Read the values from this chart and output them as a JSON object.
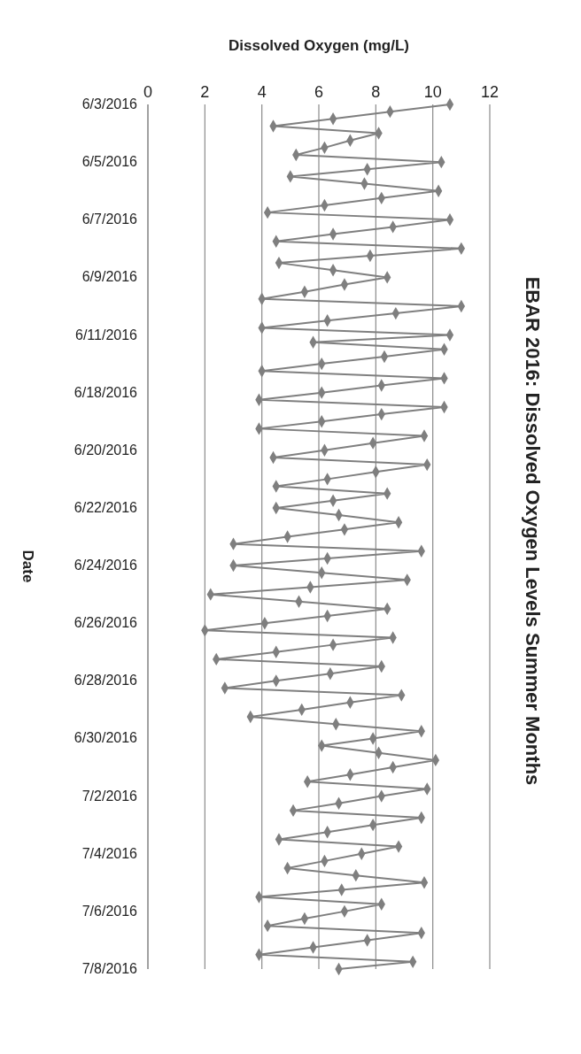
{
  "chart_data": {
    "type": "line",
    "title": "EBAR 2016: Dissolved Oxygen Levels Summer Months",
    "orientation": "horizontal",
    "xlabel": "Dissolved Oxygen (mg/L)",
    "ylabel": "Date",
    "categories": [
      "6/3/2016",
      null,
      null,
      null,
      null,
      null,
      null,
      null,
      "6/5/2016",
      null,
      null,
      null,
      null,
      null,
      null,
      null,
      "6/7/2016",
      null,
      null,
      null,
      null,
      null,
      null,
      null,
      "6/9/2016",
      null,
      null,
      null,
      null,
      null,
      null,
      null,
      "6/11/2016",
      null,
      null,
      null,
      null,
      null,
      null,
      null,
      "6/18/2016",
      null,
      null,
      null,
      null,
      null,
      null,
      null,
      "6/20/2016",
      null,
      null,
      null,
      null,
      null,
      null,
      null,
      "6/22/2016",
      null,
      null,
      null,
      null,
      null,
      null,
      null,
      "6/24/2016",
      null,
      null,
      null,
      null,
      null,
      null,
      null,
      "6/26/2016",
      null,
      null,
      null,
      null,
      null,
      null,
      null,
      "6/28/2016",
      null,
      null,
      null,
      null,
      null,
      null,
      null,
      "6/30/2016",
      null,
      null,
      null,
      null,
      null,
      null,
      null,
      "7/2/2016",
      null,
      null,
      null,
      null,
      null,
      null,
      null,
      "7/4/2016",
      null,
      null,
      null,
      null,
      null,
      null,
      null,
      "7/6/2016",
      null,
      null,
      null,
      null,
      null,
      null,
      null,
      "7/8/2016"
    ],
    "series": [
      {
        "color": "#7f7f7f",
        "values": [
          10.6,
          8.5,
          6.5,
          4.4,
          8.1,
          7.1,
          6.2,
          5.2,
          10.3,
          7.7,
          5.0,
          7.6,
          10.2,
          8.2,
          6.2,
          4.2,
          10.6,
          8.6,
          6.5,
          4.5,
          11.0,
          7.8,
          4.6,
          6.5,
          8.4,
          6.9,
          5.5,
          4.0,
          11.0,
          8.7,
          6.3,
          4.0,
          10.6,
          5.8,
          10.4,
          8.3,
          6.1,
          4.0,
          10.4,
          8.2,
          6.1,
          3.9,
          10.4,
          8.2,
          6.1,
          3.9,
          9.7,
          7.9,
          6.2,
          4.4,
          9.8,
          8.0,
          6.3,
          4.5,
          8.4,
          6.5,
          4.5,
          6.7,
          8.8,
          6.9,
          4.9,
          3.0,
          9.6,
          6.3,
          3.0,
          6.1,
          9.1,
          5.7,
          2.2,
          5.3,
          8.4,
          6.3,
          4.1,
          2.0,
          8.6,
          6.5,
          4.5,
          2.4,
          8.2,
          6.4,
          4.5,
          2.7,
          8.9,
          7.1,
          5.4,
          3.6,
          6.6,
          9.6,
          7.9,
          6.1,
          8.1,
          10.1,
          8.6,
          7.1,
          5.6,
          9.8,
          8.2,
          6.7,
          5.1,
          9.6,
          7.9,
          6.3,
          4.6,
          8.8,
          7.5,
          6.2,
          4.9,
          7.3,
          9.7,
          6.8,
          3.9,
          8.2,
          6.9,
          5.5,
          4.2,
          9.6,
          7.7,
          5.8,
          3.9,
          9.3,
          6.7
        ]
      }
    ],
    "xlim": [
      0,
      12
    ],
    "xticks": [
      0,
      2,
      4,
      6,
      8,
      10,
      12
    ],
    "grid": "x",
    "marker": "diamond"
  }
}
